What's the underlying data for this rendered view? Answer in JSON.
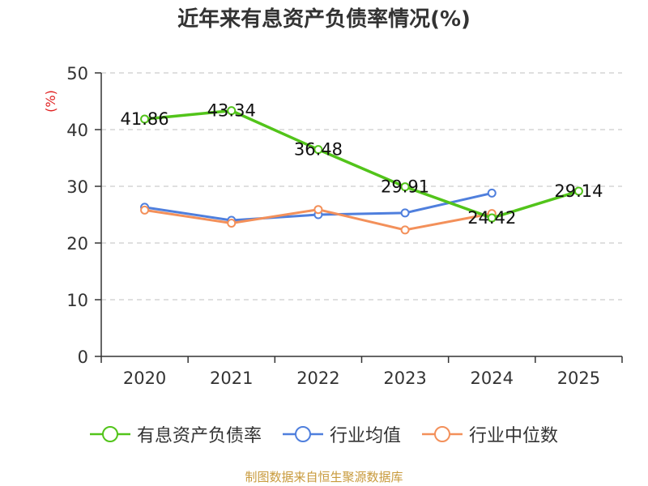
{
  "chart_data": {
    "type": "line",
    "title": "近年来有息资产负债率情况(%)",
    "ylabel": "(%)",
    "xlabel": "",
    "ylim": [
      0,
      50
    ],
    "yticks": [
      0,
      10,
      20,
      30,
      40,
      50
    ],
    "categories": [
      "2020",
      "2021",
      "2022",
      "2023",
      "2024",
      "2025"
    ],
    "grid": true,
    "legend_position": "bottom",
    "series": [
      {
        "name": "有息资产负债率",
        "color": "#52c41a",
        "values": [
          41.86,
          43.34,
          36.48,
          29.91,
          24.42,
          29.14
        ],
        "labels": [
          "41.86",
          "43.34",
          "36.48",
          "29.91",
          "24.42",
          "29.14"
        ]
      },
      {
        "name": "行业均值",
        "color": "#4f7fdd",
        "values": [
          26.3,
          24.0,
          25.0,
          25.3,
          28.8,
          null
        ]
      },
      {
        "name": "行业中位数",
        "color": "#f3905a",
        "values": [
          25.8,
          23.5,
          25.9,
          22.3,
          25.2,
          null
        ]
      }
    ]
  },
  "ylabel_color": "#e02020",
  "source": "制图数据来自恒生聚源数据库"
}
